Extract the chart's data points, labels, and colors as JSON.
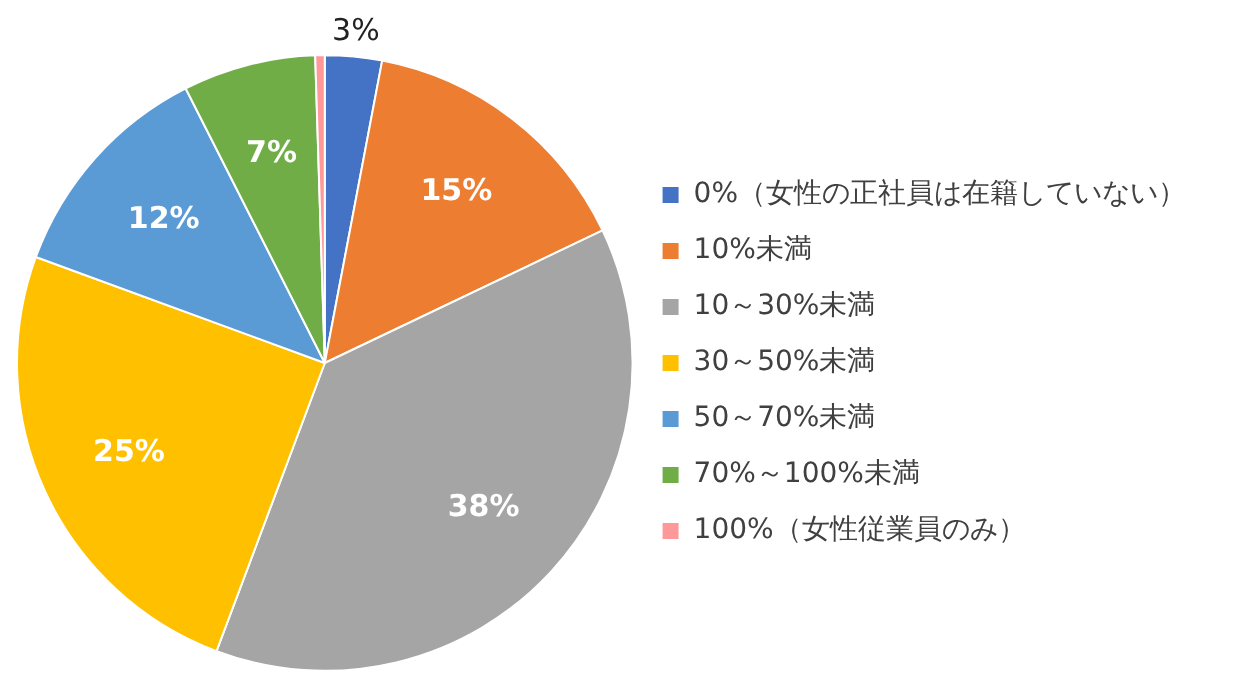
{
  "chart_data": {
    "type": "pie",
    "categories": [
      "0%（女性の正社員は在籍していない）",
      "10%未満",
      "10～30%未満",
      "30～50%未満",
      "50～70%未満",
      "70%～100%未満",
      "100%（女性従業員のみ）"
    ],
    "values": [
      3,
      15,
      38,
      25,
      12,
      7,
      0.5
    ],
    "value_labels": [
      "3%",
      "15%",
      "38%",
      "25%",
      "12%",
      "7%",
      null
    ],
    "colors": [
      "#4472c4",
      "#ed7d31",
      "#a5a5a5",
      "#ffc000",
      "#5b9bd5",
      "#70ad47",
      "#ff9999"
    ],
    "legend": "right"
  }
}
